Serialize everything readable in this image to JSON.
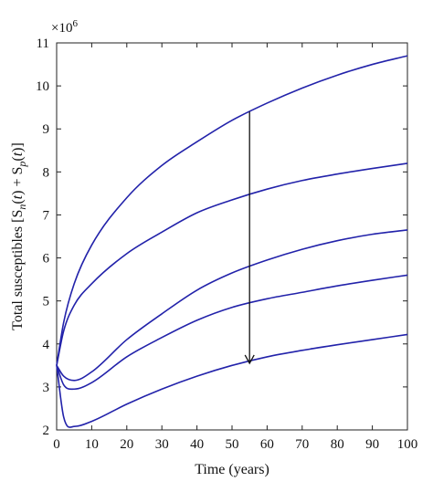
{
  "chart_data": {
    "type": "line",
    "xlabel": "Time (years)",
    "ylabel_parts": [
      "Total susceptibles [S",
      "n",
      "(",
      "t",
      ") + S",
      "p",
      "(",
      "t",
      ")]"
    ],
    "y_multiplier": "×10",
    "y_multiplier_exp": "6",
    "xlim": [
      0,
      100
    ],
    "ylim": [
      2,
      11
    ],
    "x_ticks": [
      0,
      10,
      20,
      30,
      40,
      50,
      60,
      70,
      80,
      90,
      100
    ],
    "y_ticks": [
      2,
      3,
      4,
      5,
      6,
      7,
      8,
      9,
      10,
      11
    ],
    "grid": false,
    "line_color": "#2222aa",
    "x": [
      0,
      2,
      5,
      10,
      20,
      30,
      40,
      50,
      60,
      70,
      80,
      90,
      100
    ],
    "series": [
      {
        "values": [
          3.5,
          4.5,
          5.4,
          6.3,
          7.4,
          8.15,
          8.7,
          9.2,
          9.6,
          9.95,
          10.25,
          10.5,
          10.7
        ]
      },
      {
        "values": [
          3.5,
          4.3,
          4.9,
          5.4,
          6.1,
          6.6,
          7.05,
          7.35,
          7.6,
          7.8,
          7.95,
          8.08,
          8.2
        ]
      },
      {
        "values": [
          3.5,
          3.25,
          3.15,
          3.35,
          4.1,
          4.7,
          5.25,
          5.65,
          5.95,
          6.2,
          6.4,
          6.55,
          6.65
        ]
      },
      {
        "values": [
          3.5,
          3.05,
          2.95,
          3.1,
          3.7,
          4.15,
          4.55,
          4.85,
          5.05,
          5.2,
          5.35,
          5.48,
          5.6
        ]
      },
      {
        "values": [
          3.5,
          2.3,
          2.08,
          2.2,
          2.6,
          2.95,
          3.25,
          3.5,
          3.7,
          3.85,
          3.98,
          4.1,
          4.22
        ]
      }
    ],
    "annotation_arrow": {
      "x": 55,
      "y_from": 9.4,
      "y_to": 3.55
    }
  }
}
